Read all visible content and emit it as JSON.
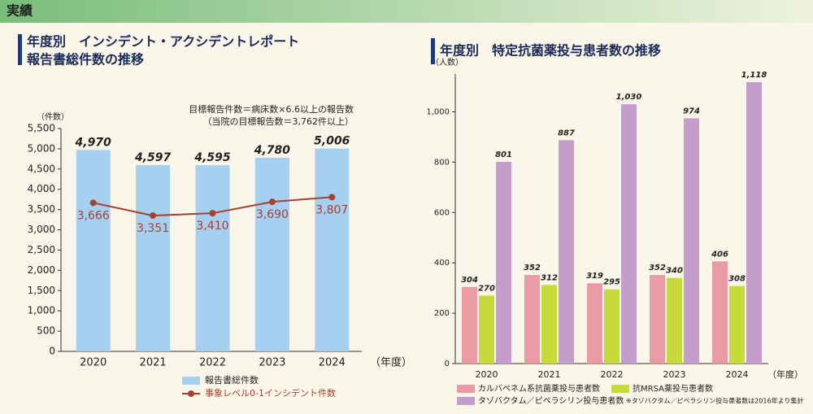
{
  "header": {
    "title": "実績"
  },
  "chart_data": [
    {
      "type": "bar",
      "title": [
        "年度別　インシデント・アクシデントレポート",
        "報告書総件数の推移"
      ],
      "annotations": [
        "目標報告件数＝病床数×6.6以上の報告数",
        "（当院の目標報告数＝3,762件以上）"
      ],
      "y_label": "（件数）",
      "x_label": "（年度）",
      "categories": [
        "2020",
        "2021",
        "2022",
        "2023",
        "2024"
      ],
      "series": [
        {
          "name": "報告書総件数",
          "type": "bar",
          "color": "#a6cff0",
          "values": [
            4970,
            4597,
            4595,
            4780,
            5006
          ],
          "value_labels": [
            "4,970",
            "4,597",
            "4,595",
            "4,780",
            "5,006"
          ]
        },
        {
          "name": "事象レベル0-1インシデント件数",
          "type": "line",
          "color": "#a8402f",
          "values": [
            3666,
            3351,
            3410,
            3690,
            3807
          ],
          "value_labels": [
            "3,666",
            "3,351",
            "3,410",
            "3,690",
            "3,807"
          ]
        }
      ],
      "ylim": [
        0,
        5500
      ],
      "yticks": [
        0,
        {
          "value": 500,
          "label": "500"
        },
        {
          "value": 1000,
          "label": "1,000"
        },
        {
          "value": 1500,
          "label": "1,500"
        },
        {
          "value": 2000,
          "label": "2,000"
        },
        {
          "value": 2500,
          "label": "2,500"
        },
        {
          "value": 3000,
          "label": "3,000"
        },
        {
          "value": 3500,
          "label": "3,500"
        },
        {
          "value": 4000,
          "label": "4,000"
        },
        {
          "value": 4500,
          "label": "4,500"
        },
        {
          "value": 5000,
          "label": "5,000"
        },
        {
          "value": 5500,
          "label": "5,500"
        }
      ],
      "grid": false
    },
    {
      "type": "bar",
      "title": [
        "年度別　特定抗菌薬投与患者数の推移"
      ],
      "y_label": "（人数）",
      "x_label": "（年度）",
      "footnote": "※タゾバクタム／ピペラシリン投与患者数は2016年より集計",
      "categories": [
        "2020",
        "2021",
        "2022",
        "2023",
        "2024"
      ],
      "series": [
        {
          "name": "カルバペネム系抗菌薬投与患者数",
          "type": "bar",
          "color": "#eb9ba4",
          "values": [
            304,
            352,
            319,
            352,
            406
          ]
        },
        {
          "name": "抗MRSA薬投与患者数",
          "type": "bar",
          "color": "#c6da3c",
          "values": [
            270,
            312,
            295,
            340,
            308
          ]
        },
        {
          "name": "タゾバクタム／ピペラシリン投与患者数",
          "type": "bar",
          "color": "#c59dcc",
          "values": [
            801,
            887,
            1030,
            974,
            1118
          ],
          "value_labels": [
            "801",
            "887",
            "1,030",
            "974",
            "1,118"
          ]
        }
      ],
      "ylim": [
        0,
        1150
      ],
      "yticks": [
        0,
        200,
        400,
        600,
        800,
        {
          "value": 1000,
          "label": "1,000"
        }
      ],
      "grid": false
    }
  ]
}
